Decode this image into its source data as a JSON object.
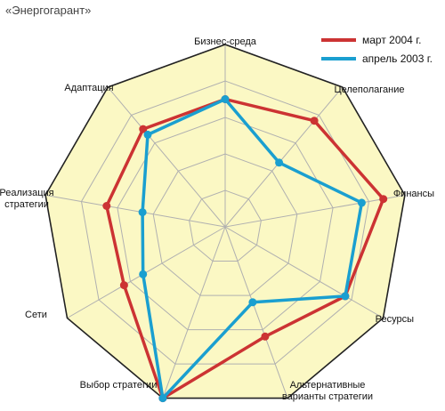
{
  "chart_data": {
    "type": "radar",
    "title": "«Энергогарант»",
    "axes": [
      "Бизнес-среда",
      "Целеполагание",
      "Финансы",
      "Ресурсы",
      "Альтернативные варианты стратегии",
      "Выбор стратегии",
      "Сети",
      "Реализация стратегии",
      "Адаптация"
    ],
    "rmax": 5,
    "grid_levels": 5,
    "grid": true,
    "legend_position": "top-right",
    "series": [
      {
        "name": "март 2004 г.",
        "color": "#cc3333",
        "values": [
          3.5,
          3.8,
          4.4,
          3.8,
          3.2,
          5.0,
          3.2,
          3.3,
          3.5
        ]
      },
      {
        "name": "апрель 2003 г.",
        "color": "#1a9fd0",
        "values": [
          3.5,
          2.3,
          3.8,
          3.8,
          2.2,
          5.0,
          2.6,
          2.3,
          3.3
        ]
      }
    ],
    "colors": {
      "fill": "#fbf8c4",
      "grid": "#b0b0b0",
      "outline": "#222222"
    }
  }
}
